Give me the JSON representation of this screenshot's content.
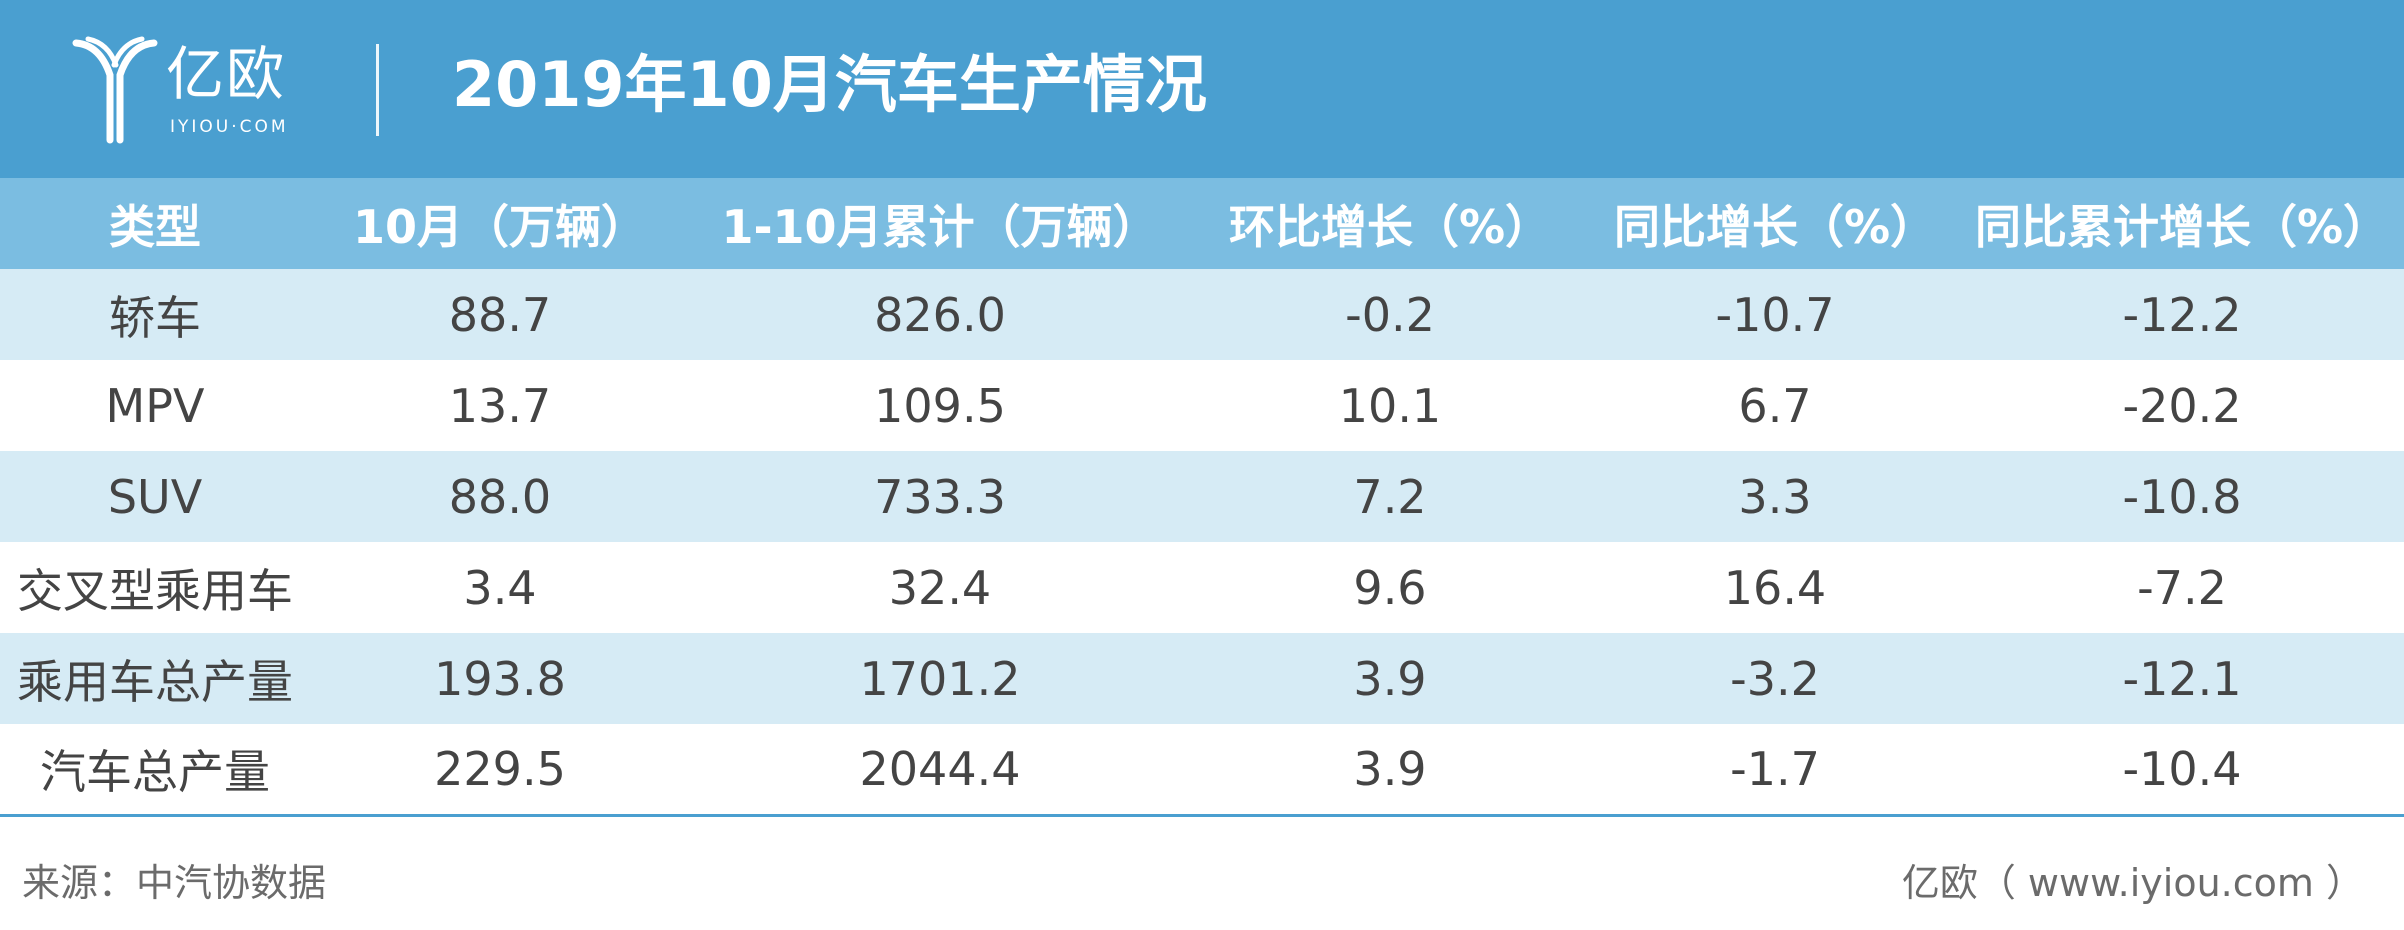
{
  "header": {
    "logo_name": "亿欧",
    "logo_sub": "IYIOU·COM",
    "title": "2019年10月汽车生产情况"
  },
  "colors": {
    "banner": "#4a9fd0",
    "header_row": "#7bbde1",
    "band_row": "#d6ebf5"
  },
  "table": {
    "columns": [
      "类型",
      "10月（万辆）",
      "1-10月累计（万辆）",
      "环比增长（%）",
      "同比增长（%）",
      "同比累计增长（%）"
    ],
    "rows": [
      [
        "轿车",
        "88.7",
        "826.0",
        "-0.2",
        "-10.7",
        "-12.2"
      ],
      [
        "MPV",
        "13.7",
        "109.5",
        "10.1",
        "6.7",
        "-20.2"
      ],
      [
        "SUV",
        "88.0",
        "733.3",
        "7.2",
        "3.3",
        "-10.8"
      ],
      [
        "交叉型乘用车",
        "3.4",
        "32.4",
        "9.6",
        "16.4",
        "-7.2"
      ],
      [
        "乘用车总产量",
        "193.8",
        "1701.2",
        "3.9",
        "-3.2",
        "-12.1"
      ],
      [
        "汽车总产量",
        "229.5",
        "2044.4",
        "3.9",
        "-1.7",
        "-10.4"
      ]
    ]
  },
  "footer": {
    "source": "来源：中汽协数据",
    "credit": "亿欧（ www.iyiou.com ）"
  }
}
